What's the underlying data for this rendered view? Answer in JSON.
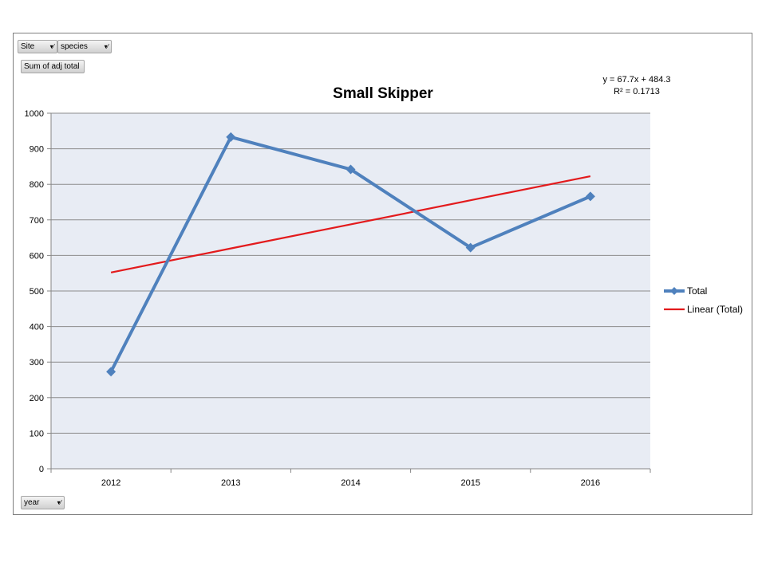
{
  "pivot_fields": {
    "filters": [
      {
        "label": "Site",
        "icon": "filter-dropdown-icon"
      },
      {
        "label": "species",
        "icon": "filter-dropdown-icon"
      }
    ],
    "value": {
      "label": "Sum of adj total"
    },
    "axis": {
      "label": "year",
      "icon": "filter-dropdown-icon"
    }
  },
  "chart_data": {
    "type": "line",
    "title": "Small Skipper",
    "categories": [
      "2012",
      "2013",
      "2014",
      "2015",
      "2016"
    ],
    "series": [
      {
        "name": "Total",
        "values": [
          273,
          933,
          842,
          622,
          766
        ],
        "color": "#4f81bd",
        "marker": "diamond"
      },
      {
        "name": "Linear (Total)",
        "values": [
          552,
          619.7,
          687.4,
          755.1,
          822.8
        ],
        "color": "#e31a1c",
        "marker": "none"
      }
    ],
    "ylim": [
      0,
      1000
    ],
    "yticks": [
      0,
      100,
      200,
      300,
      400,
      500,
      600,
      700,
      800,
      900,
      1000
    ],
    "grid": true,
    "legend": "right",
    "trendline_equation": "y = 67.7x + 484.3",
    "trendline_r2": "R² = 0.1713",
    "xlabel": "",
    "ylabel": ""
  }
}
